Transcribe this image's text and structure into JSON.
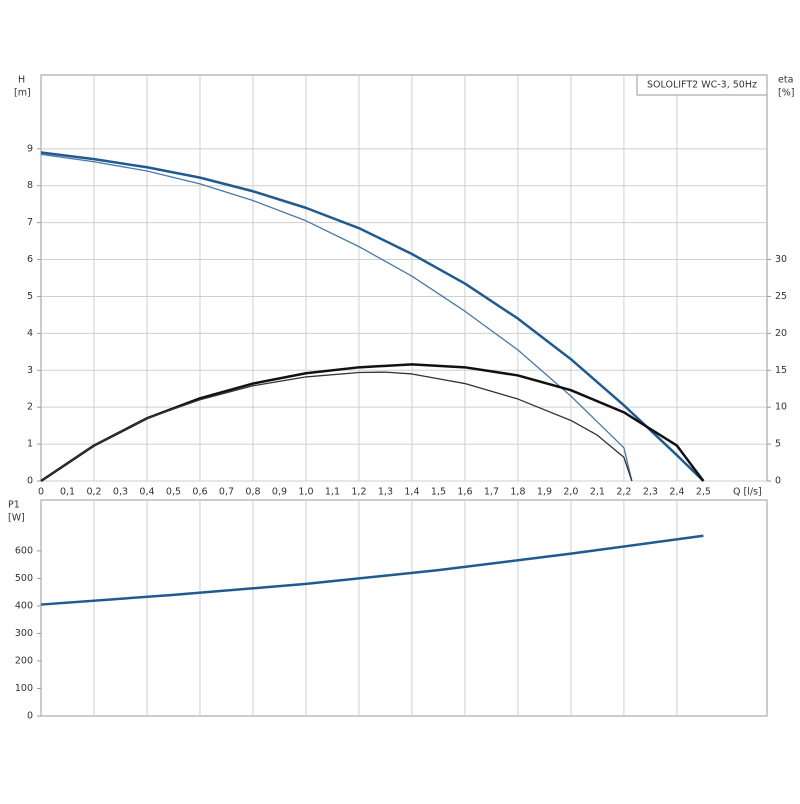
{
  "chart_data": [
    {
      "type": "line",
      "title": "SOLOLIFT2 WC-3, 50Hz",
      "ylabel": "H",
      "yunit": "[m]",
      "y2label": "eta",
      "y2unit": "[%]",
      "xlabel": "Q [l/s]",
      "xlim": [
        0,
        2.74
      ],
      "xticks": [
        0,
        {
          "value": 0.1,
          "label": "0,1"
        },
        {
          "value": 0.2,
          "label": "0,2"
        },
        {
          "value": 0.3,
          "label": "0,3"
        },
        {
          "value": 0.4,
          "label": "0,4"
        },
        {
          "value": 0.5,
          "label": "0,5"
        },
        {
          "value": 0.6,
          "label": "0,6"
        },
        {
          "value": 0.7,
          "label": "0,7"
        },
        {
          "value": 0.8,
          "label": "0,8"
        },
        {
          "value": 0.9,
          "label": "0,9"
        },
        {
          "value": 1.0,
          "label": "1,0"
        },
        {
          "value": 1.1,
          "label": "1,1"
        },
        {
          "value": 1.2,
          "label": "1,2"
        },
        {
          "value": 1.3,
          "label": "1,3"
        },
        {
          "value": 1.4,
          "label": "1,4"
        },
        {
          "value": 1.5,
          "label": "1,5"
        },
        {
          "value": 1.6,
          "label": "1,6"
        },
        {
          "value": 1.7,
          "label": "1,7"
        },
        {
          "value": 1.8,
          "label": "1,8"
        },
        {
          "value": 1.9,
          "label": "1,9"
        },
        {
          "value": 2.0,
          "label": "2,0"
        },
        {
          "value": 2.1,
          "label": "2,1"
        },
        {
          "value": 2.2,
          "label": "2,2"
        },
        {
          "value": 2.3,
          "label": "2,3"
        },
        {
          "value": 2.4,
          "label": "2,4"
        },
        {
          "value": 2.5,
          "label": "2,5"
        }
      ],
      "ylim": [
        0,
        11
      ],
      "yticks": [
        0,
        1,
        2,
        3,
        4,
        5,
        6,
        7,
        8,
        9
      ],
      "y2lim": [
        0,
        55
      ],
      "y2ticks": [
        0,
        5,
        10,
        15,
        20,
        25,
        30
      ],
      "grid": true,
      "series": [
        {
          "color": "#1f5b8f",
          "width": 2.5,
          "x": [
            0,
            0.2,
            0.4,
            0.6,
            0.8,
            1.0,
            1.2,
            1.4,
            1.6,
            1.8,
            2.0,
            2.2,
            2.4,
            2.5
          ],
          "values": [
            8.9,
            8.72,
            8.5,
            8.22,
            7.85,
            7.4,
            6.85,
            6.15,
            5.35,
            4.4,
            3.3,
            2.05,
            0.7,
            0
          ]
        },
        {
          "color": "#4a78a8",
          "width": 1.3,
          "x": [
            0,
            0.2,
            0.4,
            0.6,
            0.8,
            1.0,
            1.2,
            1.4,
            1.6,
            1.8,
            2.0,
            2.1,
            2.2,
            2.23
          ],
          "values": [
            8.85,
            8.65,
            8.4,
            8.05,
            7.6,
            7.05,
            6.35,
            5.55,
            4.6,
            3.55,
            2.3,
            1.6,
            0.9,
            0
          ]
        },
        {
          "color": "#111111",
          "width": 2.5,
          "axis": "y2",
          "x": [
            0,
            0.2,
            0.4,
            0.6,
            0.8,
            1.0,
            1.2,
            1.4,
            1.6,
            1.8,
            2.0,
            2.2,
            2.4,
            2.5
          ],
          "values": [
            0,
            4.8,
            8.5,
            11.2,
            13.2,
            14.6,
            15.4,
            15.8,
            15.4,
            14.3,
            12.3,
            9.3,
            4.8,
            0
          ]
        },
        {
          "color": "#333333",
          "width": 1.3,
          "axis": "y2",
          "x": [
            0,
            0.2,
            0.4,
            0.6,
            0.8,
            1.0,
            1.2,
            1.3,
            1.4,
            1.6,
            1.8,
            2.0,
            2.1,
            2.2,
            2.23
          ],
          "values": [
            0,
            4.8,
            8.5,
            11.0,
            12.9,
            14.1,
            14.7,
            14.75,
            14.5,
            13.2,
            11.1,
            8.2,
            6.2,
            3.2,
            0
          ]
        }
      ]
    },
    {
      "type": "line",
      "ylabel": "P1",
      "yunit": "[W]",
      "xlim": [
        0,
        2.74
      ],
      "ylim": [
        0,
        785
      ],
      "yticks": [
        0,
        100,
        200,
        300,
        400,
        500,
        600
      ],
      "series": [
        {
          "color": "#1f5b8f",
          "width": 2.5,
          "x": [
            0,
            0.5,
            1.0,
            1.5,
            2.0,
            2.5
          ],
          "values": [
            405,
            440,
            480,
            530,
            590,
            655
          ]
        }
      ]
    }
  ]
}
